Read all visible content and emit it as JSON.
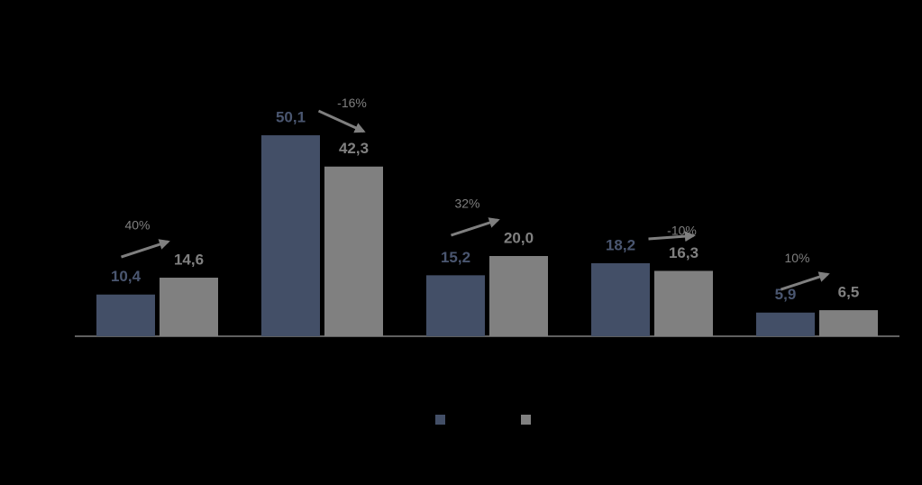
{
  "chart_data": {
    "type": "bar",
    "categories": [
      null,
      null,
      null,
      null,
      null
    ],
    "series": [
      {
        "color": "#434f67",
        "values": [
          10.4,
          50.1,
          15.2,
          18.2,
          5.9
        ],
        "value_labels": [
          "10,4",
          "50,1",
          "15,2",
          "18,2",
          "5,9"
        ]
      },
      {
        "color": "#808080",
        "values": [
          14.6,
          42.3,
          20.0,
          16.3,
          6.5
        ],
        "value_labels": [
          "14,6",
          "42,3",
          "20,0",
          "16,3",
          "6,5"
        ]
      }
    ],
    "annotations": [
      "40%",
      "-16%",
      "32%",
      "-10%",
      "10%"
    ]
  }
}
